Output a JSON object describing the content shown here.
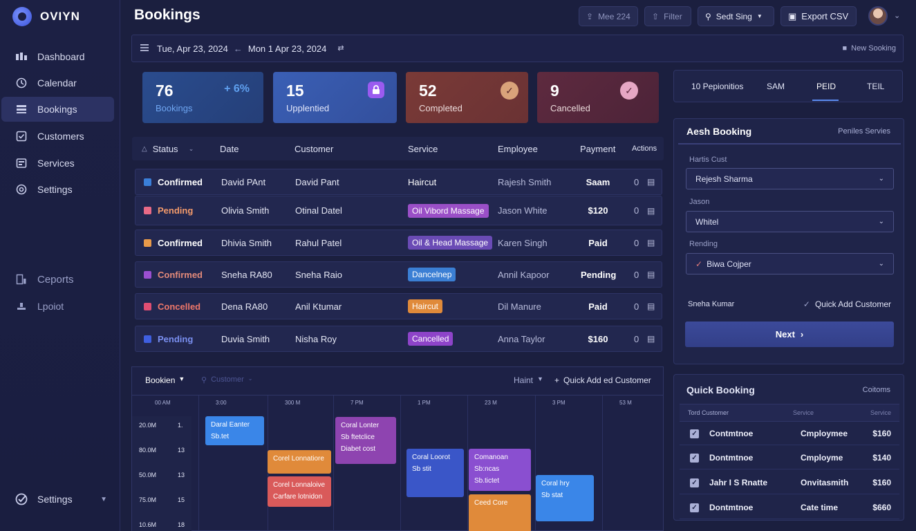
{
  "app": {
    "name": "OVIYN"
  },
  "sidebar": {
    "items": [
      {
        "label": "Dashboard",
        "icon": "dashboard-icon"
      },
      {
        "label": "Calendar",
        "icon": "calendar-icon"
      },
      {
        "label": "Bookings",
        "icon": "bookings-icon",
        "active": true
      },
      {
        "label": "Customers",
        "icon": "customers-icon"
      },
      {
        "label": "Services",
        "icon": "services-icon"
      },
      {
        "label": "Settings",
        "icon": "settings-icon"
      }
    ],
    "lower_items": [
      {
        "label": "Ceports",
        "icon": "reports-icon"
      },
      {
        "label": "Lpoiot",
        "icon": "logout-icon"
      }
    ],
    "footer_label": "Settings"
  },
  "header": {
    "title": "Bookings",
    "buttons": [
      "Mee 224",
      "Filter",
      "Sedt Sing",
      "Export CSV"
    ]
  },
  "datebar": {
    "range_start": "Tue, Apr 23, 2024",
    "range_end": "Mon 1 Apr 23, 2024",
    "new_booking": "New Sooking"
  },
  "stats": [
    {
      "num": "76",
      "label": "Bookings",
      "extra": "+ 6%",
      "color": "#2a4c8e"
    },
    {
      "num": "15",
      "label": "Upplentied",
      "color": "#3a5fb5"
    },
    {
      "num": "52",
      "label": "Completed",
      "color": "#7a3a37"
    },
    {
      "num": "9",
      "label": "Cancelled",
      "color": "#5e2a3f"
    }
  ],
  "tabs": [
    "10 Pepionitios",
    "SAM",
    "PEID",
    "TEIL"
  ],
  "table": {
    "headers": [
      "Status",
      "Date",
      "Customer",
      "Service",
      "Employee",
      "Payment",
      "Actions"
    ],
    "rows": [
      {
        "status": "Confirmed",
        "status_color": "#3a7fd9",
        "status_text": "#ffffff",
        "date": "David PAnt",
        "customer": "David Pant",
        "service": "Haircut",
        "service_color": "",
        "employee": "Rajesh Smith",
        "payment": "Saam",
        "count": "0"
      },
      {
        "status": "Pending",
        "status_color": "#e86a86",
        "status_text": "#f39a6b",
        "date": "Olivia Smith",
        "customer": "Otinal Datel",
        "service": "Oil Vibord Massage",
        "service_color": "#9a4fc7",
        "employee": "Jason White",
        "payment": "$120",
        "count": "0"
      },
      {
        "status": "Confirmed",
        "status_color": "#e89a4a",
        "status_text": "#ffffff",
        "date": "Dhivia Smith",
        "customer": "Rahul Patel",
        "service": "Oil & Head Massage",
        "service_color": "#6a4bb5",
        "employee": "Karen Singh",
        "payment": "Paid",
        "count": "0"
      },
      {
        "status": "Confirmed",
        "status_color": "#9a4fd1",
        "status_text": "#e58b7a",
        "date": "Sneha RA80",
        "customer": "Sneha Raio",
        "service": "Dancelnep",
        "service_color": "#3b7fd4",
        "employee": "Annil Kapoor",
        "payment": "Pending",
        "count": "0"
      },
      {
        "status": "Concelled",
        "status_color": "#e04e72",
        "status_text": "#f0786a",
        "date": "Dena RA80",
        "customer": "Anil Ktumar",
        "service": "Haircut",
        "service_color": "#e08a3a",
        "employee": "Dil Manure",
        "payment": "Paid",
        "count": "0"
      },
      {
        "status": "Pending",
        "status_color": "#3f5fe0",
        "status_text": "#7a8ff0",
        "date": "Duvia Smith",
        "customer": "Nisha Roy",
        "service": "Cancelled",
        "service_color": "#8e44c9",
        "employee": "Anna Taylor",
        "payment": "$160",
        "count": "0"
      }
    ]
  },
  "add_booking": {
    "title": "Aesh Booking",
    "link": "Peniles Servies",
    "f1_label": "Hartis Cust",
    "f1_value": "Rejesh Sharma",
    "f2_label": "Jason",
    "f2_value": "Whitel",
    "f3_label": "Rending",
    "f3_value": "Biwa Cojper",
    "footer_left": "Sneha Kumar",
    "quick_add": "Quick Add Customer",
    "next": "Next"
  },
  "schedule": {
    "view": "Bookien",
    "search": "Customer",
    "filter": "Haint",
    "quick_add": "Quick Add ed Customer",
    "times": [
      "00 AM",
      "3:00",
      "300 M",
      "7 PM",
      "1 PM",
      "23 M",
      "3 PM",
      "53 M"
    ],
    "rows": [
      {
        "label": "20.0M",
        "n": "1."
      },
      {
        "label": "80.0M",
        "n": "13"
      },
      {
        "label": "50.0M",
        "n": "13"
      },
      {
        "label": "75.0M",
        "n": "15"
      },
      {
        "label": "10.6M",
        "n": "18"
      }
    ],
    "events": [
      {
        "t1": "Daral Eanter",
        "t2": "Sb.tet",
        "color": "#3a86e8"
      },
      {
        "t1": "Corel Lonnatiore",
        "t2": "",
        "color": "#e08a3a"
      },
      {
        "t1": "Corel Lonnaloive",
        "t2": "Carfare lotnidon",
        "color": "#d95a5a"
      },
      {
        "t1": "Coral Lonter",
        "t2": "Sb ftetclice",
        "t3": "Diabet cost",
        "color": "#8e44b0"
      },
      {
        "t1": "Coral Loorot",
        "t2": "Sb stit",
        "color": "#3a56c8"
      },
      {
        "t1": "Comanoan",
        "t2": "Sb:ncas",
        "t3": "Sb.tictet",
        "color": "#8a4fd0"
      },
      {
        "t1": "Ceed Core",
        "t2": "",
        "color": "#e08a3a"
      },
      {
        "t1": "Coral hry",
        "t2": "Sb stat",
        "color": "#3a86e8"
      }
    ]
  },
  "quick_booking": {
    "title": "Quick Booking",
    "link": "Coitoms",
    "headers": [
      "Tord Customer",
      "Service",
      "Service"
    ],
    "rows": [
      {
        "name": "Contmtnoe",
        "service": "Cmploymee",
        "price": "$160"
      },
      {
        "name": "Dontmtnoe",
        "service": "Cmployme",
        "price": "$140"
      },
      {
        "name": "Jahr I S Rnatte",
        "service": "Onvitasmith",
        "price": "$160"
      },
      {
        "name": "Dontmtnoe",
        "service": "Cate time",
        "price": "$660"
      }
    ]
  }
}
